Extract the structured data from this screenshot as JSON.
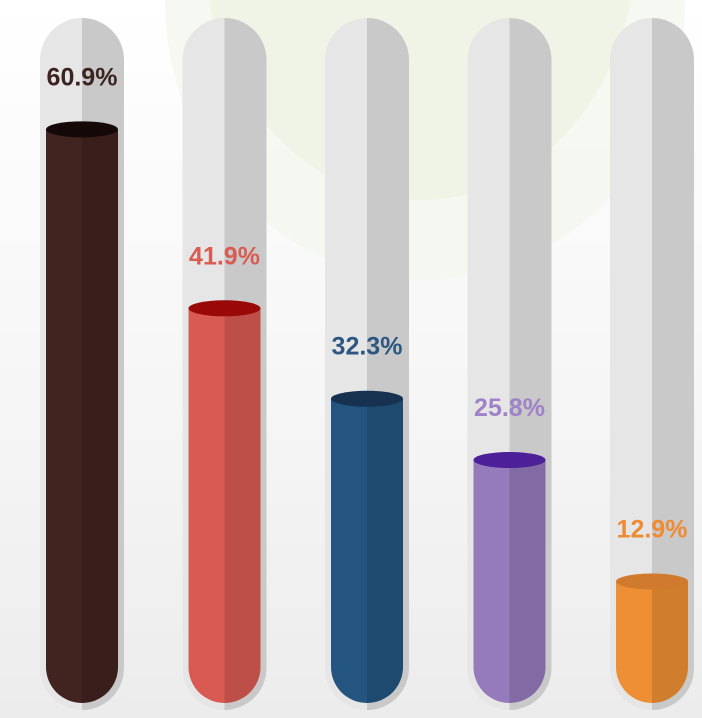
{
  "chart_data": {
    "type": "bar",
    "categories": [
      "",
      "",
      "",
      "",
      ""
    ],
    "values": [
      60.9,
      41.9,
      32.3,
      25.8,
      12.9
    ],
    "labels": [
      "60.9%",
      "41.9%",
      "32.3%",
      "25.8%",
      "12.9%"
    ],
    "ylim": [
      0,
      100
    ],
    "grid": false,
    "colors": [
      "#412320",
      "#d95a52",
      "#245580",
      "#957abc",
      "#ee8f35"
    ],
    "top_colors": [
      "#140808",
      "#980908",
      "#163250",
      "#4d1f98",
      "#cf7a2c"
    ],
    "label_colors": [
      "#3d2420",
      "#d85c51",
      "#2d5680",
      "#9f82c8",
      "#ee8b33"
    ],
    "tube_color": "#e6e6e6",
    "tube_shade": "#c9c9c9"
  }
}
